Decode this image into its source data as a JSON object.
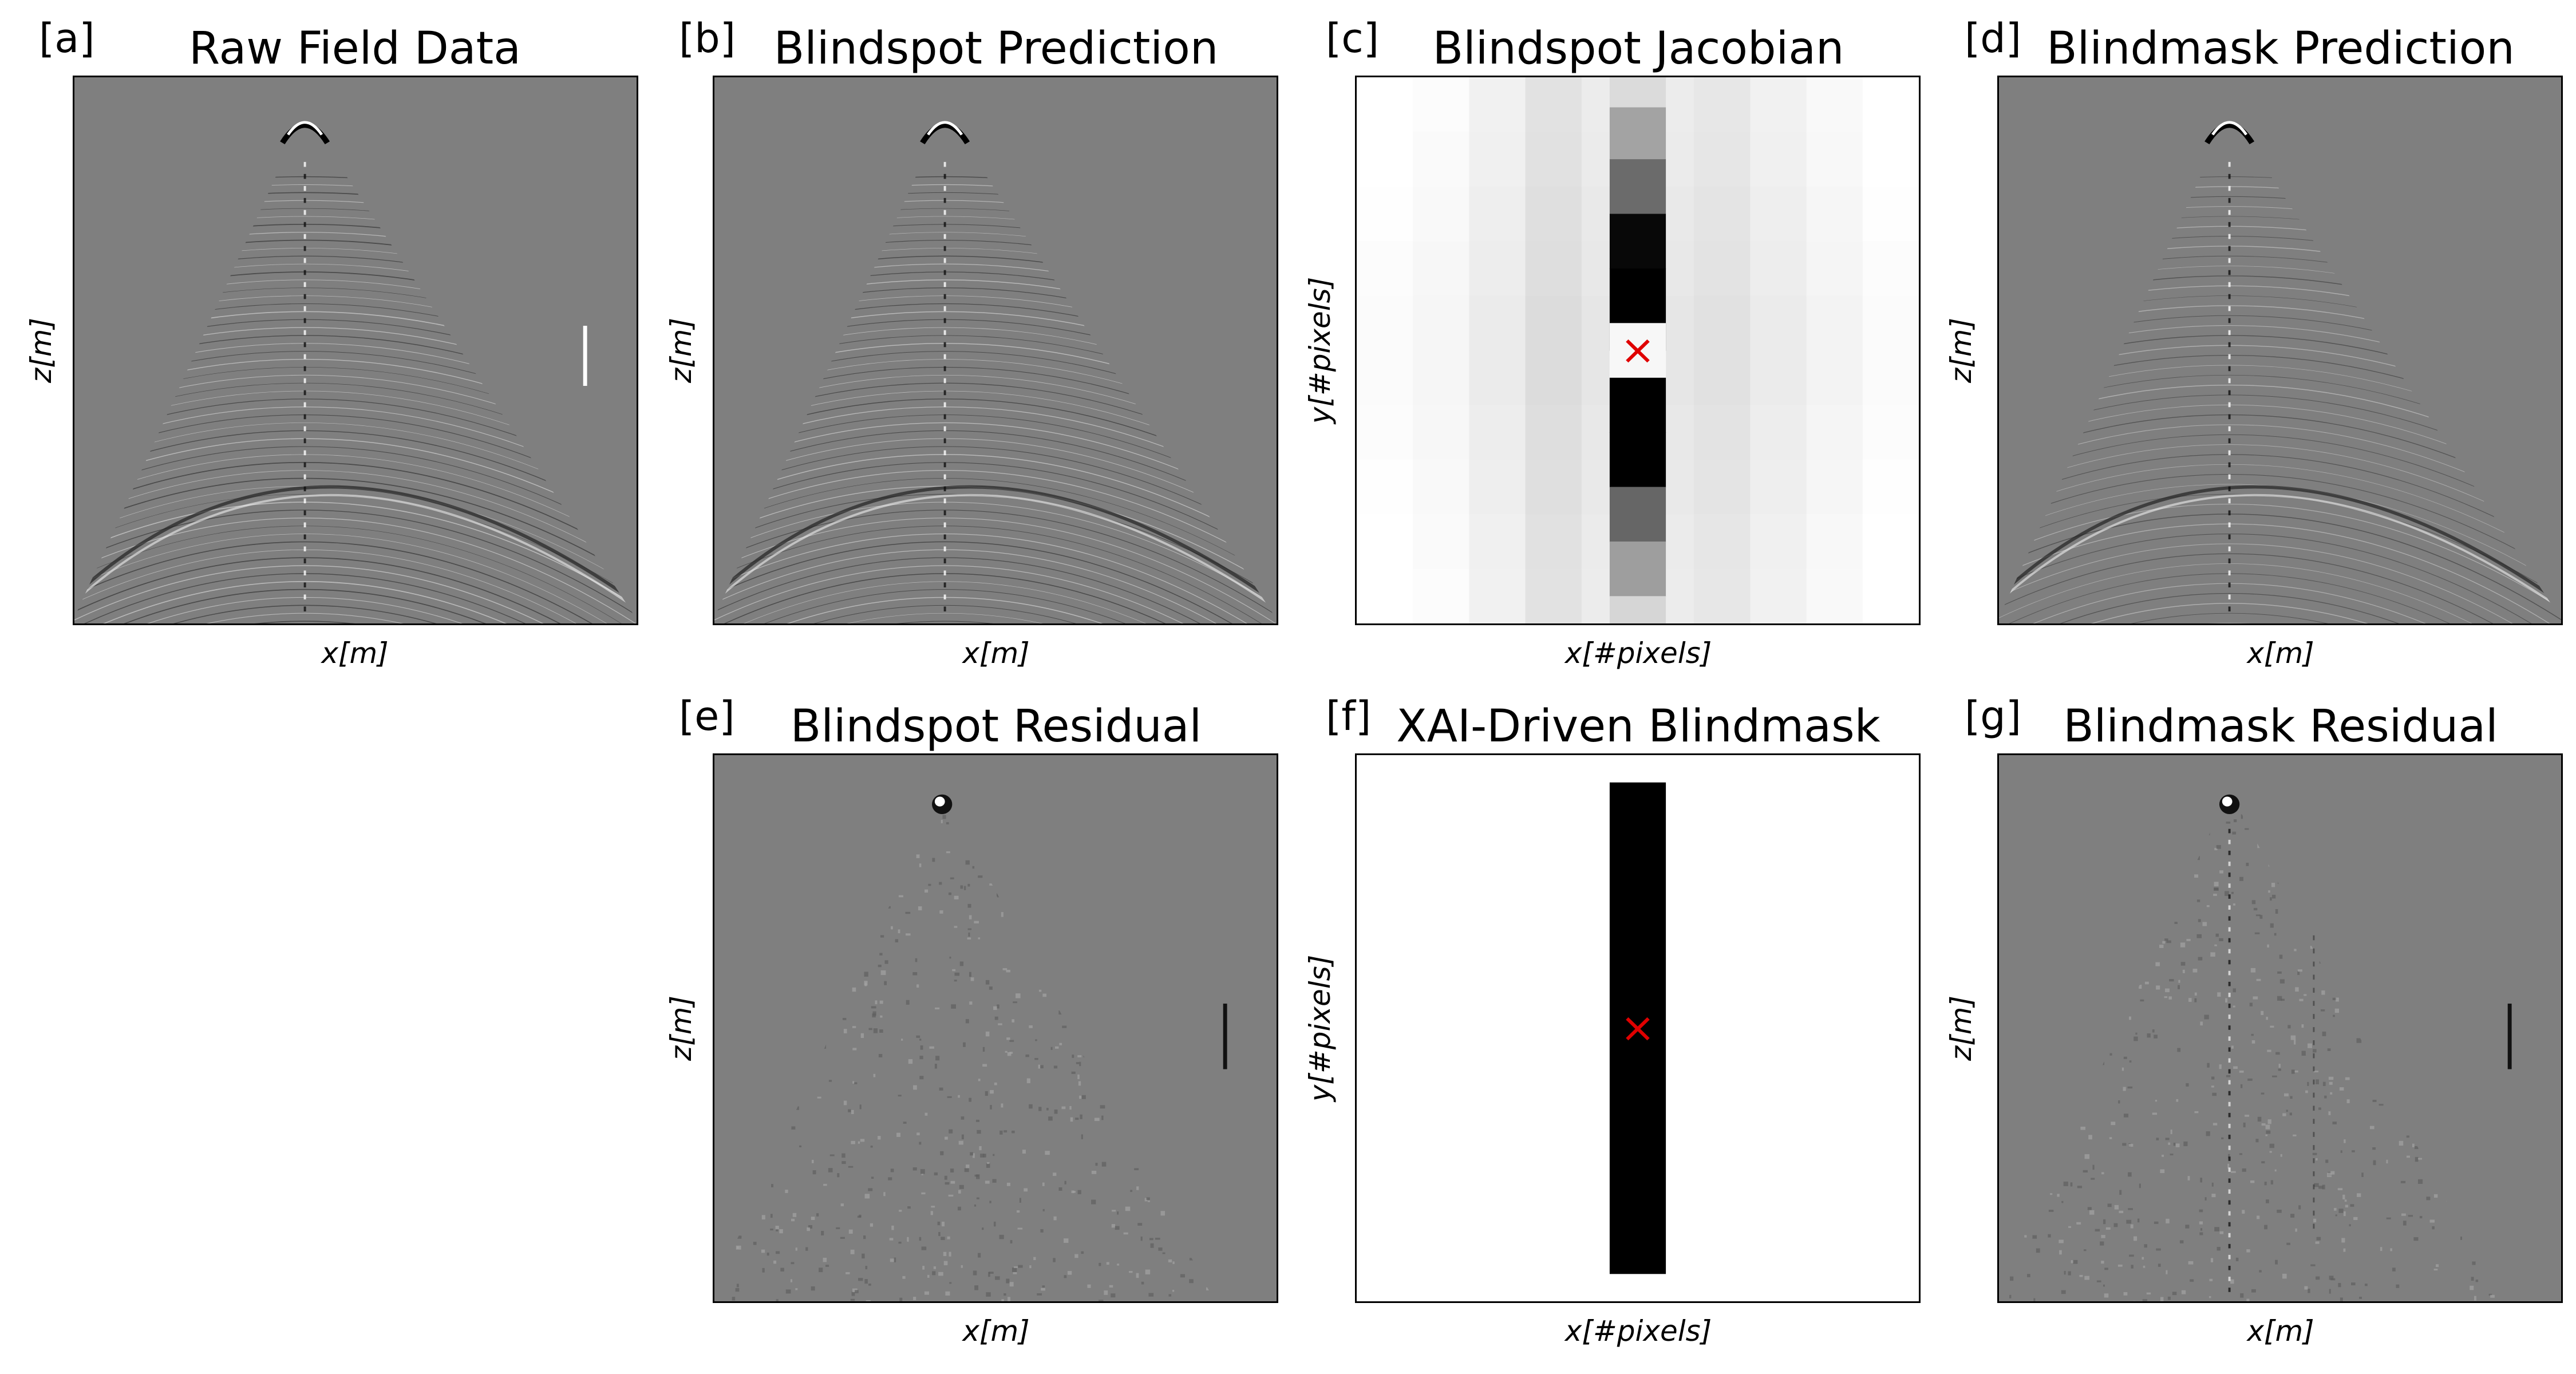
{
  "figure": {
    "panels": [
      {
        "id": "a",
        "tag": "[a]",
        "title": "Raw Field Data",
        "xlabel": "x[m]",
        "ylabel": "z[m]",
        "kind": "gather",
        "variant": "raw"
      },
      {
        "id": "b",
        "tag": "[b]",
        "title": "Blindspot Prediction",
        "xlabel": "x[m]",
        "ylabel": "z[m]",
        "kind": "gather",
        "variant": "blindspot"
      },
      {
        "id": "c",
        "tag": "[c]",
        "title": "Blindspot Jacobian",
        "xlabel": "x[#pixels]",
        "ylabel": "y[#pixels]",
        "kind": "jacobian"
      },
      {
        "id": "d",
        "tag": "[d]",
        "title": "Blindmask Prediction",
        "xlabel": "x[m]",
        "ylabel": "z[m]",
        "kind": "gather",
        "variant": "blindmask"
      },
      {
        "id": "e",
        "tag": "[e]",
        "title": "Blindspot Residual",
        "xlabel": "x[m]",
        "ylabel": "z[m]",
        "kind": "residual",
        "variant": "blindspot"
      },
      {
        "id": "f",
        "tag": "[f]",
        "title": "XAI-Driven Blindmask",
        "xlabel": "x[#pixels]",
        "ylabel": "y[#pixels]",
        "kind": "mask"
      },
      {
        "id": "g",
        "tag": "[g]",
        "title": "Blindmask Residual",
        "xlabel": "x[m]",
        "ylabel": "z[m]",
        "kind": "residual",
        "variant": "blindmask"
      }
    ],
    "colors": {
      "background_gray": "#7f7f7f",
      "marker_red": "#e00000"
    },
    "marker": "×"
  }
}
